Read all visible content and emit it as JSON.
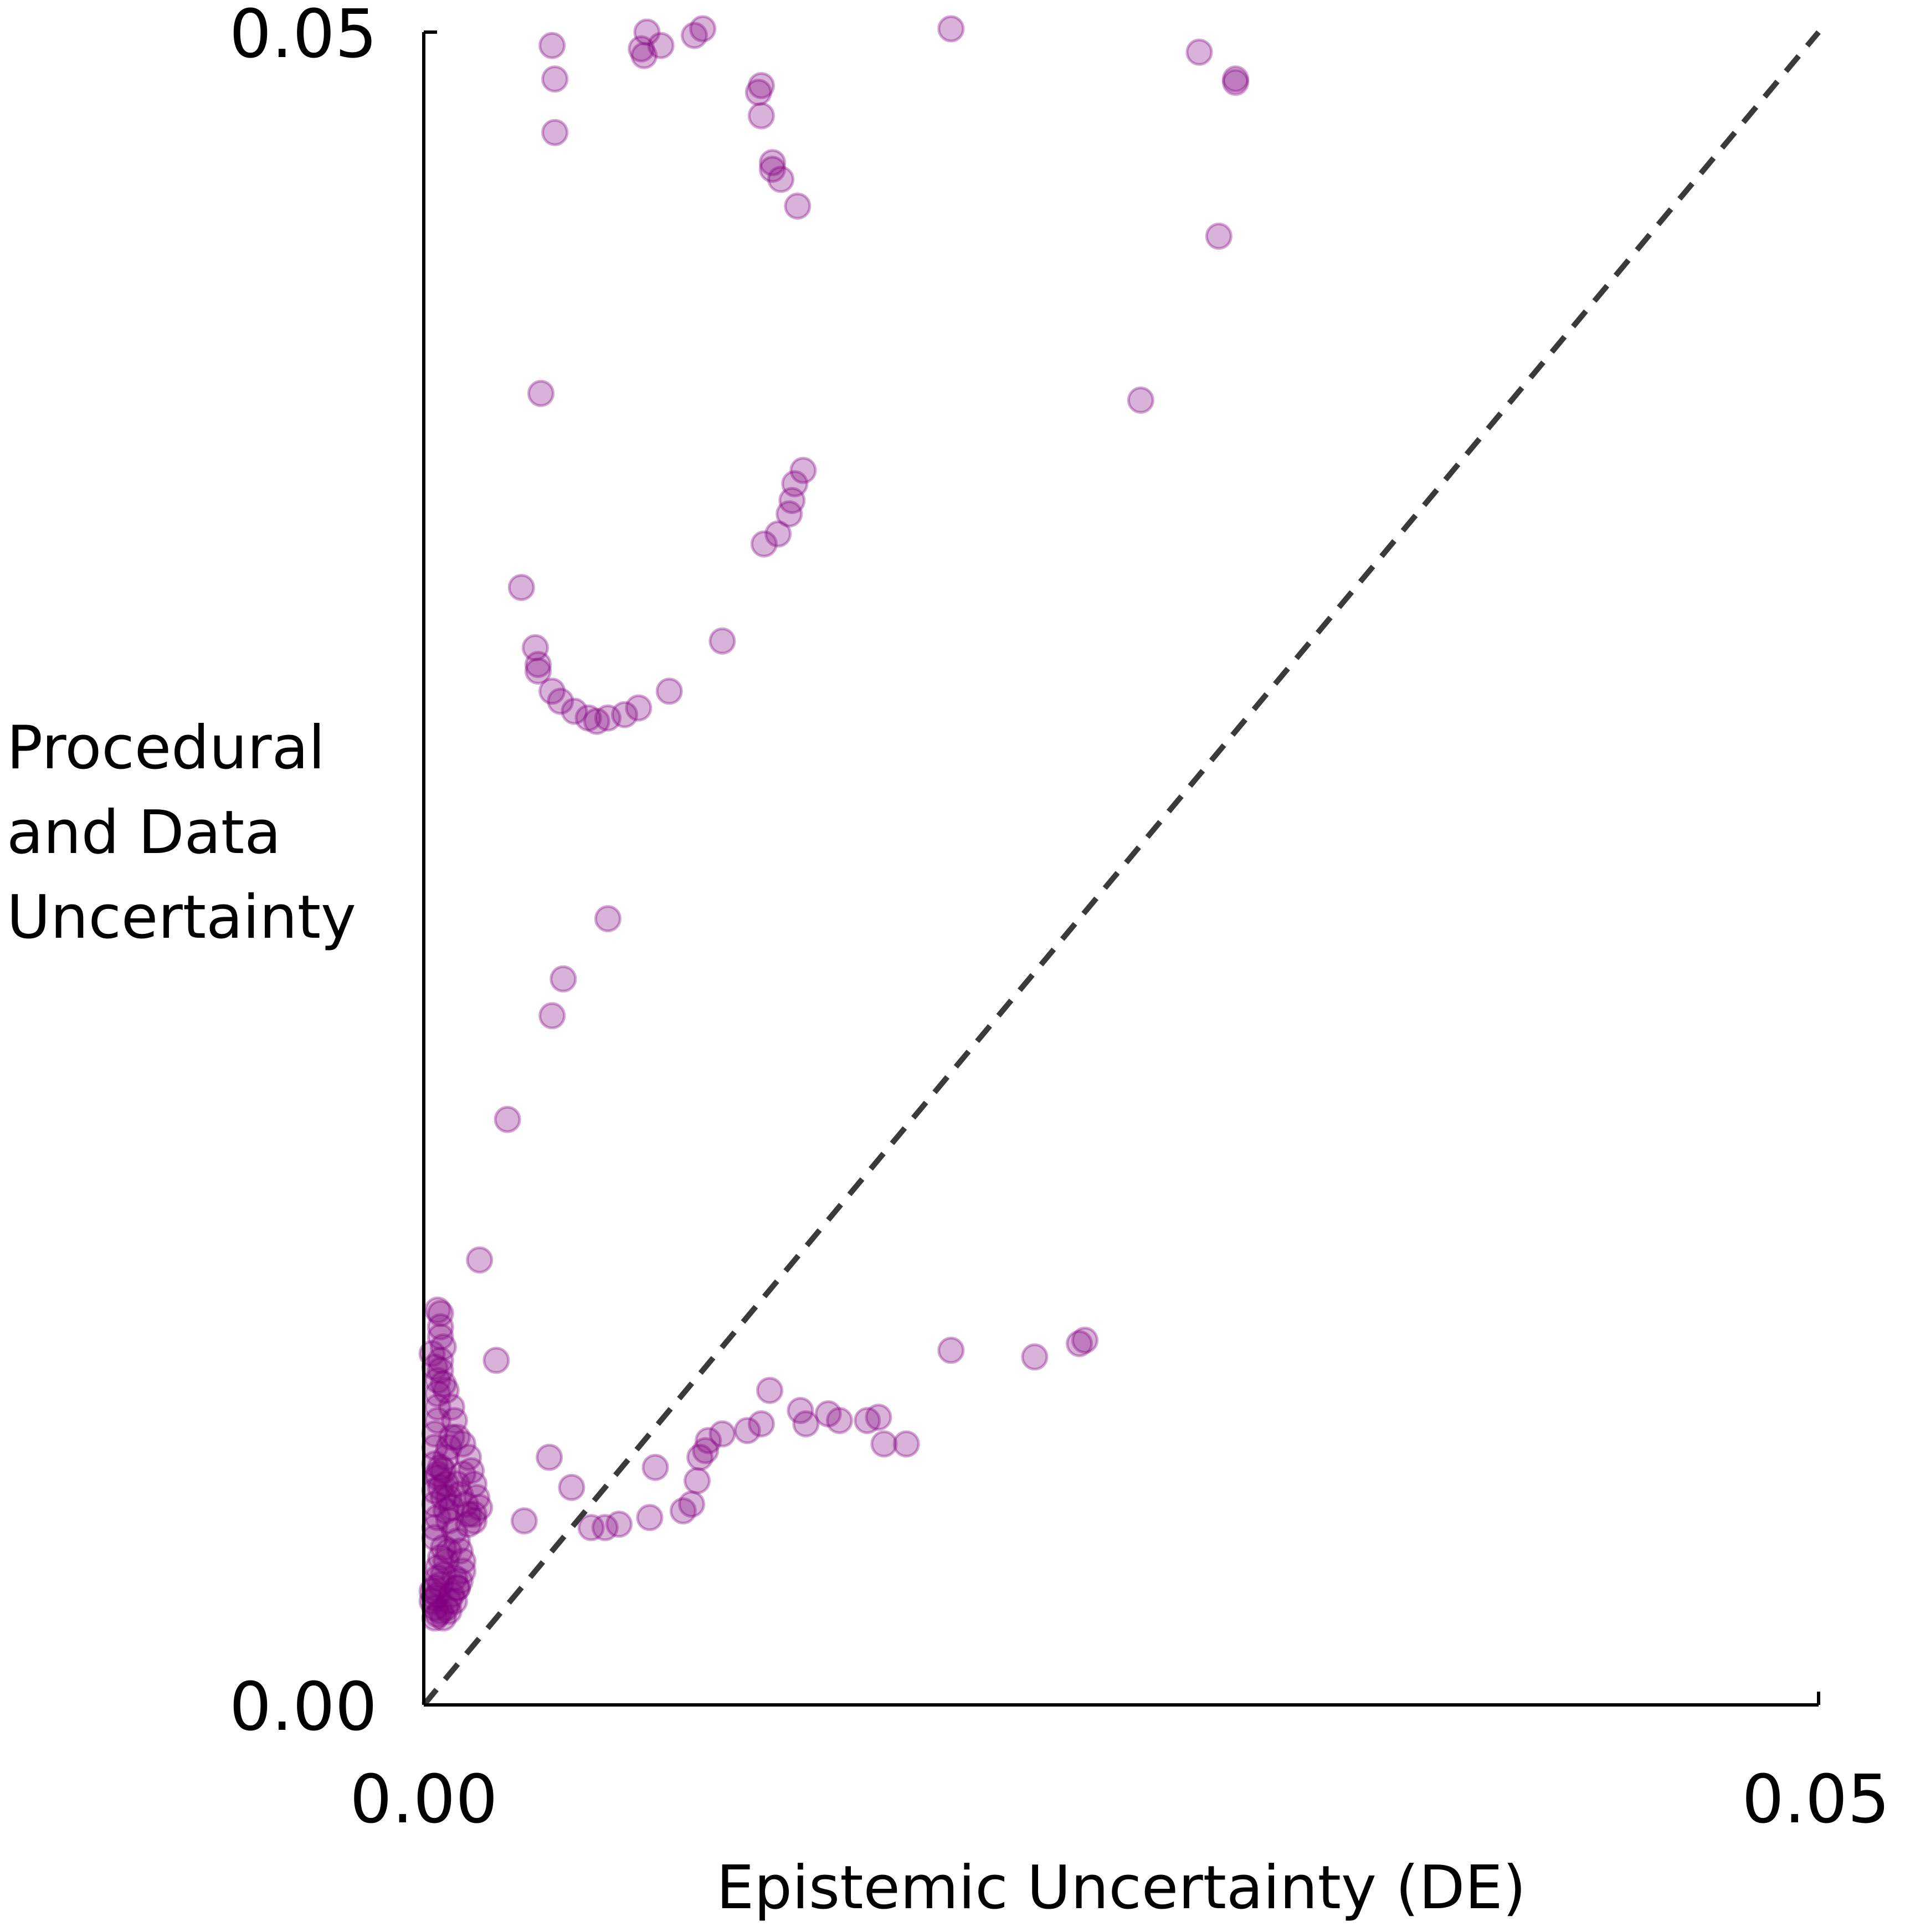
{
  "chart_data": {
    "type": "scatter",
    "title": "",
    "xlabel": "Epistemic Uncertainty (DE)",
    "ylabel_lines": [
      "Procedural",
      "and Data",
      "Uncertainty"
    ],
    "xlim": [
      0.0,
      0.05
    ],
    "ylim": [
      0.0,
      0.05
    ],
    "x_ticks": [
      {
        "value": 0.0,
        "label": "0.00"
      },
      {
        "value": 0.05,
        "label": "0.05"
      }
    ],
    "y_ticks": [
      {
        "value": 0.0,
        "label": "0.00"
      },
      {
        "value": 0.05,
        "label": "0.05"
      }
    ],
    "grid": false,
    "reference_line": {
      "type": "diagonal",
      "style": "dashed",
      "color": "#3a3a3a",
      "from": [
        0.0,
        0.0
      ],
      "to": [
        0.05,
        0.05
      ]
    },
    "series": [
      {
        "name": "points",
        "color": "#800080",
        "alpha": 0.3,
        "points": [
          [
            0.0046,
            0.0496
          ],
          [
            0.0047,
            0.0486
          ],
          [
            0.0047,
            0.047
          ],
          [
            0.0078,
            0.0495
          ],
          [
            0.008,
            0.05
          ],
          [
            0.0079,
            0.0493
          ],
          [
            0.0085,
            0.0496
          ],
          [
            0.0097,
            0.0499
          ],
          [
            0.01,
            0.0501
          ],
          [
            0.0189,
            0.0501
          ],
          [
            0.0278,
            0.0494
          ],
          [
            0.0291,
            0.0486
          ],
          [
            0.0291,
            0.0485
          ],
          [
            0.0121,
            0.0484
          ],
          [
            0.012,
            0.0482
          ],
          [
            0.0121,
            0.0475
          ],
          [
            0.0125,
            0.0461
          ],
          [
            0.0125,
            0.0459
          ],
          [
            0.0128,
            0.0456
          ],
          [
            0.0134,
            0.0448
          ],
          [
            0.0285,
            0.0439
          ],
          [
            0.0257,
            0.039
          ],
          [
            0.0042,
            0.0392
          ],
          [
            0.0136,
            0.0369
          ],
          [
            0.0133,
            0.0365
          ],
          [
            0.0132,
            0.036
          ],
          [
            0.0131,
            0.0356
          ],
          [
            0.0127,
            0.035
          ],
          [
            0.0122,
            0.0347
          ],
          [
            0.0035,
            0.0334
          ],
          [
            0.0107,
            0.0318
          ],
          [
            0.004,
            0.0316
          ],
          [
            0.0041,
            0.0311
          ],
          [
            0.0041,
            0.0309
          ],
          [
            0.0046,
            0.0303
          ],
          [
            0.0049,
            0.03
          ],
          [
            0.0054,
            0.0297
          ],
          [
            0.0059,
            0.0295
          ],
          [
            0.0062,
            0.0294
          ],
          [
            0.0066,
            0.0295
          ],
          [
            0.0072,
            0.0296
          ],
          [
            0.0077,
            0.0298
          ],
          [
            0.0088,
            0.0303
          ],
          [
            0.0066,
            0.0235
          ],
          [
            0.005,
            0.0217
          ],
          [
            0.0046,
            0.0206
          ],
          [
            0.003,
            0.0175
          ],
          [
            0.002,
            0.0133
          ],
          [
            0.0026,
            0.0103
          ],
          [
            0.0189,
            0.0106
          ],
          [
            0.0219,
            0.0104
          ],
          [
            0.0235,
            0.0108
          ],
          [
            0.0237,
            0.0109
          ],
          [
            0.0124,
            0.0094
          ],
          [
            0.0135,
            0.0088
          ],
          [
            0.0137,
            0.0084
          ],
          [
            0.0145,
            0.0087
          ],
          [
            0.0149,
            0.0085
          ],
          [
            0.0159,
            0.0085
          ],
          [
            0.0163,
            0.0086
          ],
          [
            0.0121,
            0.0084
          ],
          [
            0.0116,
            0.0082
          ],
          [
            0.0107,
            0.0081
          ],
          [
            0.0102,
            0.0079
          ],
          [
            0.0101,
            0.0076
          ],
          [
            0.0099,
            0.0074
          ],
          [
            0.0173,
            0.0078
          ],
          [
            0.0165,
            0.0078
          ],
          [
            0.0045,
            0.0074
          ],
          [
            0.0083,
            0.0071
          ],
          [
            0.0098,
            0.0067
          ],
          [
            0.0093,
            0.0058
          ],
          [
            0.0096,
            0.006
          ],
          [
            0.0081,
            0.0056
          ],
          [
            0.007,
            0.0054
          ],
          [
            0.0065,
            0.0053
          ],
          [
            0.006,
            0.0053
          ],
          [
            0.0053,
            0.0065
          ],
          [
            0.0036,
            0.0055
          ],
          [
            0.0005,
            0.0118
          ],
          [
            0.0006,
            0.0117
          ],
          [
            0.0006,
            0.0113
          ],
          [
            0.0006,
            0.011
          ],
          [
            0.0007,
            0.0107
          ],
          [
            0.0006,
            0.0103
          ],
          [
            0.0006,
            0.01
          ],
          [
            0.0007,
            0.0096
          ],
          [
            0.0008,
            0.0094
          ],
          [
            0.001,
            0.0089
          ],
          [
            0.0011,
            0.0085
          ],
          [
            0.0012,
            0.008
          ],
          [
            0.0014,
            0.0078
          ],
          [
            0.0016,
            0.0074
          ],
          [
            0.0017,
            0.007
          ],
          [
            0.0018,
            0.0066
          ],
          [
            0.0019,
            0.0062
          ],
          [
            0.002,
            0.0059
          ],
          [
            0.0018,
            0.0057
          ],
          [
            0.0016,
            0.0054
          ],
          [
            0.0004,
            0.0081
          ],
          [
            0.0004,
            0.0077
          ],
          [
            0.0004,
            0.0072
          ],
          [
            0.0005,
            0.0069
          ],
          [
            0.0006,
            0.0065
          ],
          [
            0.0007,
            0.0062
          ],
          [
            0.0008,
            0.0058
          ],
          [
            0.0009,
            0.0055
          ],
          [
            0.0011,
            0.0052
          ],
          [
            0.0012,
            0.0049
          ],
          [
            0.0013,
            0.0046
          ],
          [
            0.0014,
            0.0043
          ],
          [
            0.0014,
            0.004
          ],
          [
            0.0013,
            0.0037
          ],
          [
            0.0012,
            0.0035
          ],
          [
            0.001,
            0.0033
          ],
          [
            0.0009,
            0.0031
          ],
          [
            0.0008,
            0.0029
          ],
          [
            0.0006,
            0.0028
          ],
          [
            0.0005,
            0.0027
          ],
          [
            0.0004,
            0.0026
          ],
          [
            0.0004,
            0.0029
          ],
          [
            0.0004,
            0.0032
          ],
          [
            0.0004,
            0.0035
          ],
          [
            0.0005,
            0.0038
          ],
          [
            0.0005,
            0.0041
          ],
          [
            0.0006,
            0.0044
          ],
          [
            0.0007,
            0.0047
          ],
          [
            0.0004,
            0.005
          ],
          [
            0.0004,
            0.0053
          ],
          [
            0.0005,
            0.0056
          ],
          [
            0.0004,
            0.006
          ],
          [
            0.0004,
            0.0064
          ],
          [
            0.0005,
            0.0068
          ],
          [
            0.0006,
            0.0071
          ],
          [
            0.0008,
            0.0074
          ],
          [
            0.0009,
            0.0077
          ],
          [
            0.001,
            0.008
          ],
          [
            0.0005,
            0.0085
          ],
          [
            0.0005,
            0.0089
          ],
          [
            0.0005,
            0.0093
          ],
          [
            0.0005,
            0.0097
          ],
          [
            0.0004,
            0.0101
          ],
          [
            0.0003,
            0.0105
          ],
          [
            0.0003,
            0.0034
          ],
          [
            0.0003,
            0.0031
          ],
          [
            0.0005,
            0.0033
          ],
          [
            0.0006,
            0.0036
          ],
          [
            0.0007,
            0.0039
          ],
          [
            0.0008,
            0.0043
          ],
          [
            0.0009,
            0.0046
          ],
          [
            0.0011,
            0.0038
          ],
          [
            0.0012,
            0.0035
          ],
          [
            0.0011,
            0.0031
          ],
          [
            0.0009,
            0.0028
          ],
          [
            0.0007,
            0.0026
          ],
          [
            0.0012,
            0.0066
          ],
          [
            0.0013,
            0.0063
          ],
          [
            0.0015,
            0.006
          ],
          [
            0.0016,
            0.0057
          ],
          [
            0.0018,
            0.0055
          ],
          [
            0.001,
            0.0059
          ],
          [
            0.0009,
            0.0062
          ],
          [
            0.0008,
            0.0066
          ],
          [
            0.0007,
            0.007
          ],
          [
            0.0014,
            0.0069
          ]
        ]
      }
    ]
  }
}
